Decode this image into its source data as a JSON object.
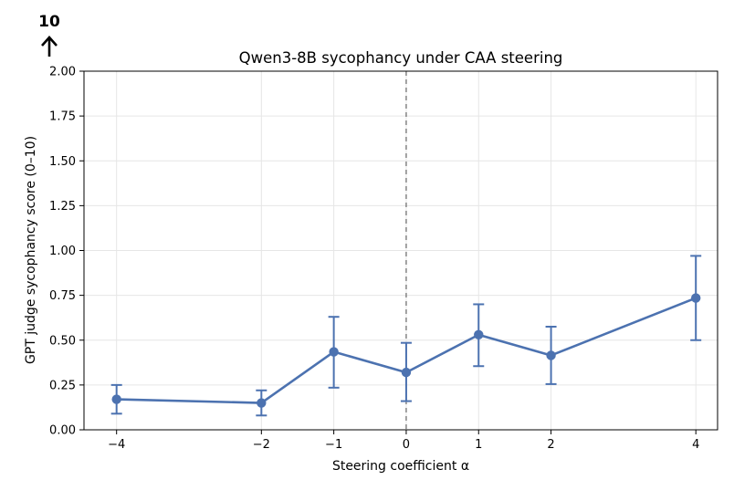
{
  "chart_data": {
    "type": "line",
    "title": "Qwen3-8B sycophancy under CAA steering",
    "xlabel": "Steering coefficient α",
    "ylabel": "GPT judge sycophancy score (0–10)",
    "corner_label": "10",
    "x": [
      -4,
      -2,
      -1,
      0,
      1,
      2,
      4
    ],
    "x_tick_labels": [
      "−4",
      "−2",
      "−1",
      "0",
      "1",
      "2",
      "4"
    ],
    "y_ticks": [
      "0.00",
      "0.25",
      "0.50",
      "0.75",
      "1.00",
      "1.25",
      "1.50",
      "1.75",
      "2.00"
    ],
    "xlim": [
      -4.45,
      4.3
    ],
    "ylim": [
      0,
      2
    ],
    "grid": true,
    "reference_line_x": 0,
    "series": [
      {
        "values": [
          0.17,
          0.15,
          0.435,
          0.32,
          0.53,
          0.415,
          0.735
        ],
        "error_low": [
          0.09,
          0.08,
          0.235,
          0.16,
          0.355,
          0.255,
          0.5
        ],
        "error_high": [
          0.25,
          0.22,
          0.63,
          0.485,
          0.7,
          0.575,
          0.97
        ],
        "color": "#4c72b0"
      }
    ]
  }
}
